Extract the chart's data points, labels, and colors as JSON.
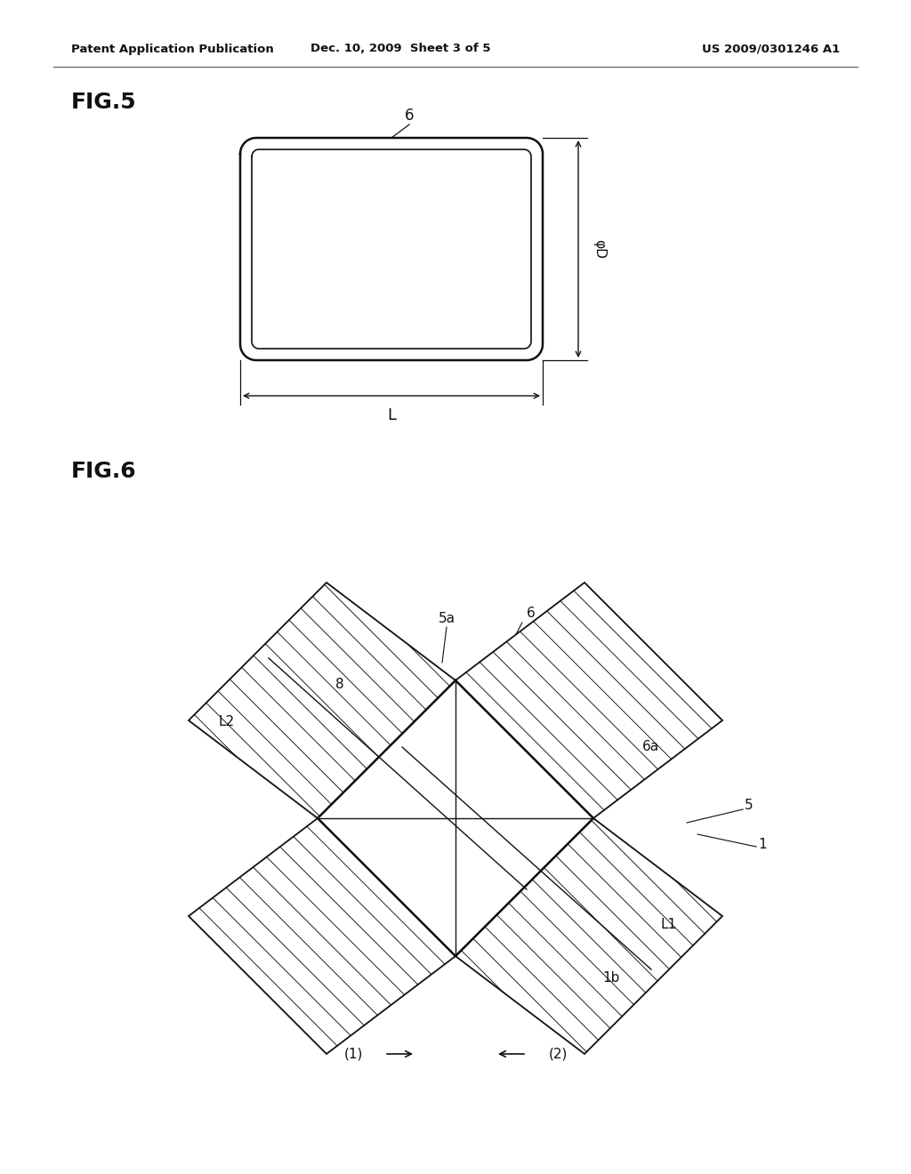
{
  "bg_color": "#ffffff",
  "header_left": "Patent Application Publication",
  "header_center": "Dec. 10, 2009  Sheet 3 of 5",
  "header_right": "US 2009/0301246 A1",
  "fig5_label": "FIG.5",
  "fig6_label": "FIG.6",
  "label_6": "6",
  "label_phiD": "φD",
  "label_L": "L",
  "label_5a": "5a",
  "label_6a": "6a",
  "label_8": "8",
  "label_L2": "L2",
  "label_5": "5",
  "label_1": "1",
  "label_L1": "L1",
  "label_1b": "1b",
  "label_arr1": "(1)",
  "label_arr2": "(2)"
}
